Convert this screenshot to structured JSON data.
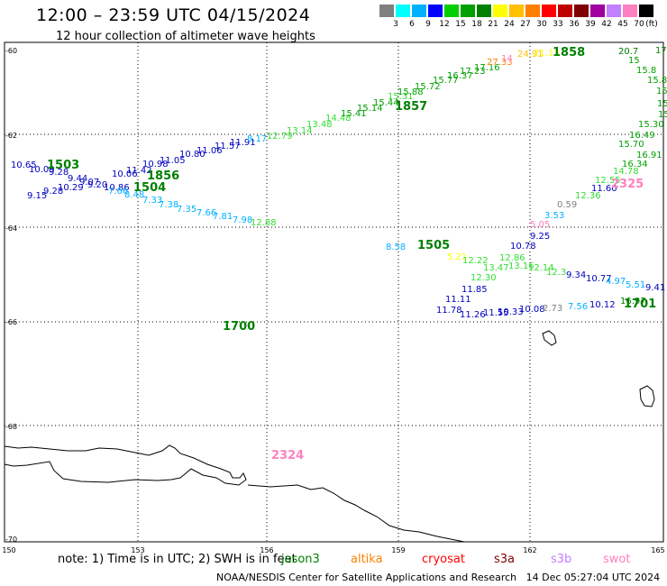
{
  "header": {
    "title": "12:00 – 23:59 UTC 04/15/2024",
    "subtitle": "12 hour collection of altimeter wave heights"
  },
  "legend": {
    "unit": "(ft)",
    "values": [
      "3",
      "6",
      "9",
      "12",
      "15",
      "18",
      "21",
      "24",
      "27",
      "30",
      "33",
      "36",
      "39",
      "42",
      "45",
      "70"
    ],
    "colors": [
      "#808080",
      "#00ffff",
      "#00b0ff",
      "#0000ff",
      "#00d000",
      "#00a000",
      "#008000",
      "#ffff00",
      "#ffc000",
      "#ff8000",
      "#ff0000",
      "#c00000",
      "#800000",
      "#a000a0",
      "#c080ff",
      "#ff80c0",
      "#000000"
    ]
  },
  "axes": {
    "y_ticks": [
      "-60",
      "-62",
      "-64",
      "-66",
      "-68",
      "-70"
    ],
    "x_ticks": [
      "150",
      "153",
      "156",
      "159",
      "162",
      "165"
    ]
  },
  "labels": [
    {
      "t": "10.65",
      "c": "#0000c0"
    },
    {
      "t": "10.09",
      "c": "#0000c0"
    },
    {
      "t": "9.28",
      "c": "#0000c0"
    },
    {
      "t": "9.44",
      "c": "#0000c0"
    },
    {
      "t": "9.07",
      "c": "#0000c0"
    },
    {
      "t": "10.29",
      "c": "#0000c0"
    },
    {
      "t": "9.20",
      "c": "#0000c0"
    },
    {
      "t": "9.28",
      "c": "#0000c0"
    },
    {
      "t": "9.15",
      "c": "#0000c0"
    },
    {
      "t": "10.86",
      "c": "#0000c0"
    },
    {
      "t": "10.06",
      "c": "#0000c0"
    },
    {
      "t": "11.42",
      "c": "#0000c0"
    },
    {
      "t": "10.98",
      "c": "#0000c0"
    },
    {
      "t": "11.05",
      "c": "#0000c0"
    },
    {
      "t": "10.80",
      "c": "#0000c0"
    },
    {
      "t": "11.06",
      "c": "#0000c0"
    },
    {
      "t": "11.57",
      "c": "#0000c0"
    },
    {
      "t": "11.91",
      "c": "#0000c0"
    },
    {
      "t": "8.17",
      "c": "#00b0ff"
    },
    {
      "t": "7.66",
      "c": "#00b0ff"
    },
    {
      "t": "8.48",
      "c": "#00b0ff"
    },
    {
      "t": "7.33",
      "c": "#00b0ff"
    },
    {
      "t": "7.38",
      "c": "#00b0ff"
    },
    {
      "t": "7.35",
      "c": "#00b0ff"
    },
    {
      "t": "7.66",
      "c": "#00b0ff"
    },
    {
      "t": "7.81",
      "c": "#00b0ff"
    },
    {
      "t": "7.98",
      "c": "#00b0ff"
    },
    {
      "t": "12.88",
      "c": "#33dd33"
    },
    {
      "t": "12.79",
      "c": "#33dd33"
    },
    {
      "t": "13.14",
      "c": "#33dd33"
    },
    {
      "t": "13.48",
      "c": "#33dd33"
    },
    {
      "t": "14.48",
      "c": "#33dd33"
    },
    {
      "t": "15.41",
      "c": "#00a000"
    },
    {
      "t": "15.14",
      "c": "#00a000"
    },
    {
      "t": "15.44",
      "c": "#00a000"
    },
    {
      "t": "15.31",
      "c": "#33dd33"
    },
    {
      "t": "15.88",
      "c": "#00a000"
    },
    {
      "t": "15.72",
      "c": "#00a000"
    },
    {
      "t": "15.77",
      "c": "#00a000"
    },
    {
      "t": "16.37",
      "c": "#00a000"
    },
    {
      "t": "17.23",
      "c": "#00a000"
    },
    {
      "t": "17.16",
      "c": "#00a000"
    },
    {
      "t": "27.33",
      "c": "#ff8000"
    },
    {
      "t": "14",
      "c": "#ff80c0"
    },
    {
      "t": "24.91",
      "c": "#ffc000"
    },
    {
      "t": "21.13",
      "c": "#ffff00"
    },
    {
      "t": "20.7",
      "c": "#008000"
    },
    {
      "t": "17",
      "c": "#008000"
    },
    {
      "t": "15",
      "c": "#00a000"
    },
    {
      "t": "15.8",
      "c": "#00a000"
    },
    {
      "t": "15.86",
      "c": "#00a000"
    },
    {
      "t": "15.62",
      "c": "#00a000"
    },
    {
      "t": "15.06",
      "c": "#00a000"
    },
    {
      "t": "15.43",
      "c": "#00a000"
    },
    {
      "t": "15.30",
      "c": "#00a000"
    },
    {
      "t": "16.49",
      "c": "#00a000"
    },
    {
      "t": "15.70",
      "c": "#00a000"
    },
    {
      "t": "16.91",
      "c": "#00a000"
    },
    {
      "t": "16.34",
      "c": "#00a000"
    },
    {
      "t": "14.78",
      "c": "#33dd33"
    },
    {
      "t": "12.55",
      "c": "#33dd33"
    },
    {
      "t": "11.60",
      "c": "#0000c0"
    },
    {
      "t": "12.36",
      "c": "#33dd33"
    },
    {
      "t": "0.59",
      "c": "#808080"
    },
    {
      "t": "3.53",
      "c": "#00b0ff"
    },
    {
      "t": "5.05",
      "c": "#ff80c0"
    },
    {
      "t": "9.25",
      "c": "#0000c0"
    },
    {
      "t": "10.78",
      "c": "#0000c0"
    },
    {
      "t": "8.58",
      "c": "#00b0ff"
    },
    {
      "t": "5.21",
      "c": "#ffff00"
    },
    {
      "t": "12.22",
      "c": "#33dd33"
    },
    {
      "t": "12.86",
      "c": "#33dd33"
    },
    {
      "t": "13.47",
      "c": "#33dd33"
    },
    {
      "t": "13.16",
      "c": "#33dd33"
    },
    {
      "t": "12.14",
      "c": "#33dd33"
    },
    {
      "t": "12.30",
      "c": "#33dd33"
    },
    {
      "t": "12.3",
      "c": "#33dd33"
    },
    {
      "t": "9.34",
      "c": "#0000c0"
    },
    {
      "t": "10.77",
      "c": "#0000c0"
    },
    {
      "t": "4.97",
      "c": "#00b0ff"
    },
    {
      "t": "5.51",
      "c": "#00b0ff"
    },
    {
      "t": "9.41",
      "c": "#0000c0"
    },
    {
      "t": "11.85",
      "c": "#0000c0"
    },
    {
      "t": "11.11",
      "c": "#0000c0"
    },
    {
      "t": "11.78",
      "c": "#0000c0"
    },
    {
      "t": "11.26",
      "c": "#0000c0"
    },
    {
      "t": "11.55",
      "c": "#0000c0"
    },
    {
      "t": "10.33",
      "c": "#0000c0"
    },
    {
      "t": "10.08",
      "c": "#0000c0"
    },
    {
      "t": "2.73",
      "c": "#808080"
    },
    {
      "t": "7.56",
      "c": "#00b0ff"
    },
    {
      "t": "10.12",
      "c": "#0000c0"
    },
    {
      "t": "16.97",
      "c": "#008000"
    }
  ],
  "track_times": [
    {
      "t": "1503",
      "c": "#008000"
    },
    {
      "t": "1856",
      "c": "#008000"
    },
    {
      "t": "1504",
      "c": "#008000"
    },
    {
      "t": "1857",
      "c": "#008000"
    },
    {
      "t": "1858",
      "c": "#008000"
    },
    {
      "t": "2325",
      "c": "#ff80c0"
    },
    {
      "t": "1505",
      "c": "#008000"
    },
    {
      "t": "1701",
      "c": "#008000"
    },
    {
      "t": "1700",
      "c": "#008000"
    },
    {
      "t": "2324",
      "c": "#ff80c0"
    }
  ],
  "footer": {
    "note": "note: 1) Time is in UTC; 2) SWH is in feet",
    "satellites": [
      {
        "name": "jason3",
        "color": "#008000"
      },
      {
        "name": "altika",
        "color": "#ff8000"
      },
      {
        "name": "cryosat",
        "color": "#ff0000"
      },
      {
        "name": "s3a",
        "color": "#800000"
      },
      {
        "name": "s3b",
        "color": "#c080ff"
      },
      {
        "name": "swot",
        "color": "#ff80c0"
      }
    ],
    "credit": "NOAA/NESDIS Center for Satellite Applications and Research",
    "timestamp": "14 Dec 05:27:04 UTC 2024"
  }
}
